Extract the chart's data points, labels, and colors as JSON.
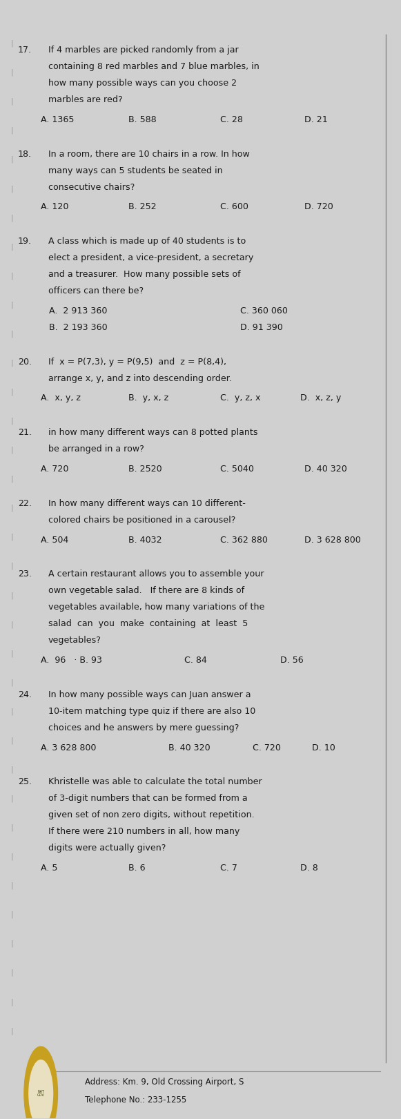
{
  "bg_color": "#d0d0d0",
  "paper_color": "#e6e6e6",
  "text_color": "#1a1a1a",
  "questions": [
    {
      "number": "17.",
      "lines": [
        "If 4 marbles are picked randomly from a jar",
        "containing 8 red marbles and 7 blue marbles, in",
        "how many possible ways can you choose 2",
        "marbles are red?"
      ],
      "choices_type": "single_row",
      "choices": [
        "A. 1365",
        "B. 588",
        "C. 28",
        "D. 21"
      ]
    },
    {
      "number": "18.",
      "lines": [
        "In a room, there are 10 chairs in a row. In how",
        "many ways can 5 students be seated in",
        "consecutive chairs?"
      ],
      "choices_type": "single_row",
      "choices": [
        "A. 120",
        "B. 252",
        "C. 600",
        "D. 720"
      ]
    },
    {
      "number": "19.",
      "lines": [
        "A class which is made up of 40 students is to",
        "elect a president, a vice-president, a secretary",
        "and a treasurer.  How many possible sets of",
        "officers can there be?"
      ],
      "choices_type": "two_col",
      "choices": [
        "A.  2 913 360",
        "C. 360 060",
        "B.  2 193 360",
        "D. 91 390"
      ]
    },
    {
      "number": "20.",
      "lines": [
        "If  x = P(7,3), y = P(9,5)  and  z = P(8,4),",
        "arrange x, y, and z into descending order."
      ],
      "choices_type": "single_row_4",
      "choices": [
        "A.  x, y, z",
        "B.  y, x, z",
        "C.  y, z, x",
        "D.  x, z, y"
      ]
    },
    {
      "number": "21.",
      "lines": [
        "in how many different ways can 8 potted plants",
        "be arranged in a row?"
      ],
      "choices_type": "single_row",
      "choices": [
        "A. 720",
        "B. 2520",
        "C. 5040",
        "D. 40 320"
      ]
    },
    {
      "number": "22.",
      "lines": [
        "In how many different ways can 10 different-",
        "colored chairs be positioned in a carousel?"
      ],
      "choices_type": "single_row",
      "choices": [
        "A. 504",
        "B. 4032",
        "C. 362 880",
        "D. 3 628 800"
      ]
    },
    {
      "number": "23.",
      "lines": [
        "A certain restaurant allows you to assemble your",
        "own vegetable salad.   If there are 8 kinds of",
        "vegetables available, how many variations of the",
        "salad  can  you  make  containing  at  least  5",
        "vegetables?"
      ],
      "choices_type": "single_row_23",
      "choices": [
        "A.  96   · B. 93",
        "C. 84",
        "D. 56"
      ]
    },
    {
      "number": "24.",
      "lines": [
        "In how many possible ways can Juan answer a",
        "10-item matching type quiz if there are also 10",
        "choices and he answers by mere guessing?"
      ],
      "choices_type": "single_row_24",
      "choices": [
        "A. 3 628 800",
        "B. 40 320",
        "C. 720",
        "D. 10"
      ]
    },
    {
      "number": "25.",
      "lines": [
        "Khristelle was able to calculate the total number",
        "of 3-digit numbers that can be formed from a",
        "given set of non zero digits, without repetition.",
        "If there were 210 numbers in all, how many",
        "digits were actually given?"
      ],
      "choices_type": "single_row_4",
      "choices": [
        "A. 5",
        "B. 6",
        "C. 7",
        "D. 8"
      ]
    }
  ],
  "footer_text_1": "Address: Km. 9, Old Crossing Airport, S",
  "footer_text_2": "Telephone No.: 233-1255"
}
